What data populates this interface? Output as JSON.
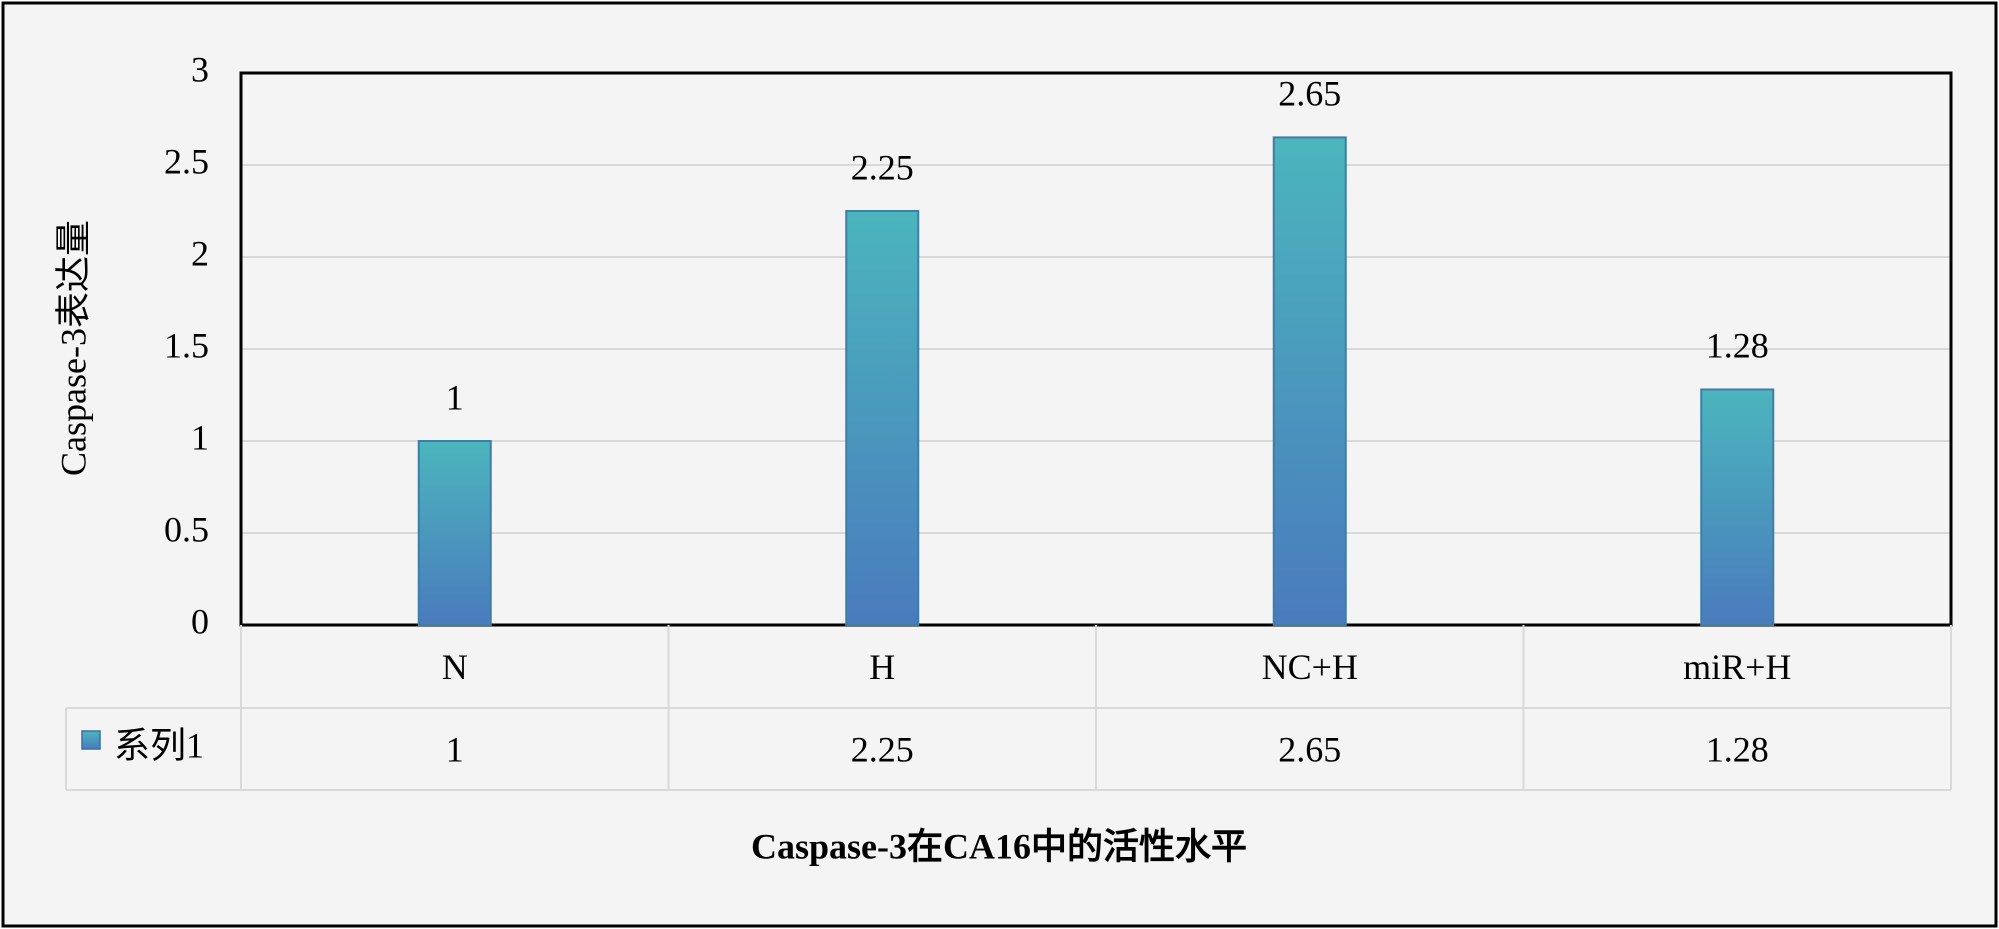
{
  "chart_data": {
    "type": "bar",
    "title": "Caspase-3在CA16中的活性水平",
    "y_label": "Caspase-3表达量",
    "categories": [
      "N",
      "H",
      "NC+H",
      "miR+H"
    ],
    "series": [
      {
        "name": "系列1",
        "color": "#4bb5bd",
        "values": [
          1,
          2.25,
          2.65,
          1.28
        ]
      }
    ],
    "ylim": [
      0,
      3
    ],
    "yticks": [
      0,
      0.5,
      1,
      1.5,
      2,
      2.5,
      3
    ],
    "grid": true
  }
}
